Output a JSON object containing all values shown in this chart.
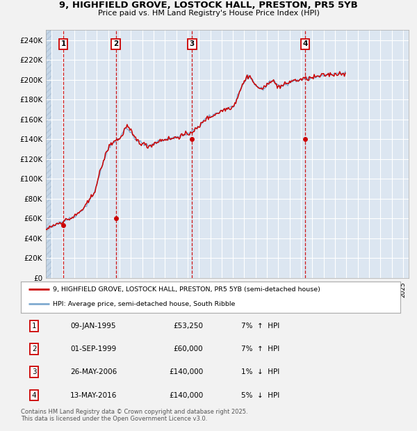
{
  "title": "9, HIGHFIELD GROVE, LOSTOCK HALL, PRESTON, PR5 5YB",
  "subtitle": "Price paid vs. HM Land Registry's House Price Index (HPI)",
  "ylim": [
    0,
    250000
  ],
  "yticks": [
    0,
    20000,
    40000,
    60000,
    80000,
    100000,
    120000,
    140000,
    160000,
    180000,
    200000,
    220000,
    240000
  ],
  "ytick_labels": [
    "£0",
    "£20K",
    "£40K",
    "£60K",
    "£80K",
    "£100K",
    "£120K",
    "£140K",
    "£160K",
    "£180K",
    "£200K",
    "£220K",
    "£240K"
  ],
  "xlim_start": 1993.5,
  "xlim_end": 2025.5,
  "bg_color": "#dce6f1",
  "grid_color": "#ffffff",
  "fig_bg": "#f2f2f2",
  "transactions": [
    {
      "num": 1,
      "date": "09-JAN-1995",
      "price": 53250,
      "year": 1995.03,
      "pct": "7%",
      "dir": "↑",
      "rel": "HPI"
    },
    {
      "num": 2,
      "date": "01-SEP-1999",
      "price": 60000,
      "year": 1999.67,
      "pct": "7%",
      "dir": "↑",
      "rel": "HPI"
    },
    {
      "num": 3,
      "date": "26-MAY-2006",
      "price": 140000,
      "year": 2006.4,
      "pct": "1%",
      "dir": "↓",
      "rel": "HPI"
    },
    {
      "num": 4,
      "date": "13-MAY-2016",
      "price": 140000,
      "year": 2016.37,
      "pct": "5%",
      "dir": "↓",
      "rel": "HPI"
    }
  ],
  "legend_line1": "9, HIGHFIELD GROVE, LOSTOCK HALL, PRESTON, PR5 5YB (semi-detached house)",
  "legend_line2": "HPI: Average price, semi-detached house, South Ribble",
  "footnote": "Contains HM Land Registry data © Crown copyright and database right 2025.\nThis data is licensed under the Open Government Licence v3.0.",
  "red_color": "#cc0000",
  "blue_color": "#80aad0",
  "hpi_base": [
    46500,
    47200,
    47800,
    48100,
    48500,
    49000,
    49500,
    50000,
    50500,
    51000,
    51500,
    52000,
    52500,
    53000,
    53200,
    53500,
    54000,
    54500,
    55000,
    55300,
    55600,
    56000,
    56400,
    56800,
    57200,
    57600,
    58000,
    58300,
    58700,
    59100,
    59500,
    59800,
    60200,
    60600,
    61100,
    61600,
    62200,
    62800,
    63500,
    64200,
    65000,
    65800,
    66700,
    67600,
    68500,
    69400,
    70300,
    71200,
    72200,
    73500,
    75000,
    76500,
    78000,
    79500,
    81000,
    82500,
    84000,
    86000,
    88500,
    91500,
    95000,
    98500,
    102000,
    105000,
    108000,
    111000,
    114000,
    117000,
    120000,
    122500,
    125000,
    127500,
    130000,
    132000,
    133500,
    134500,
    135500,
    136500,
    137500,
    138000,
    138500,
    139000,
    139500,
    140000,
    141000,
    142500,
    144000,
    146000,
    148000,
    149500,
    150500,
    151000,
    150500,
    150000,
    149000,
    148000,
    147000,
    145500,
    144000,
    142500,
    141000,
    140000,
    139000,
    138500,
    138000,
    137500,
    137000,
    136500,
    136000,
    135500,
    135000,
    134500,
    134000,
    133500,
    133200,
    133000,
    133200,
    133500,
    134000,
    134500,
    135000,
    135500,
    136000,
    136500,
    137000,
    137500,
    138000,
    138500,
    138800,
    139000,
    139200,
    139500,
    139800,
    140000,
    140200,
    140300,
    140400,
    140500,
    140600,
    140800,
    141000,
    141200,
    141500,
    141800,
    142000,
    142300,
    142600,
    142900,
    143200,
    143500,
    143700,
    143900,
    144100,
    144300,
    144500,
    144700,
    145000,
    145500,
    146200,
    147000,
    147800,
    148500,
    149000,
    149500,
    150000,
    150500,
    151000,
    151500,
    152500,
    153500,
    155000,
    156500,
    158000,
    159000,
    159800,
    160500,
    161000,
    161500,
    162000,
    162500,
    163000,
    163500,
    164000,
    164500,
    165000,
    165500,
    166000,
    166500,
    167000,
    167500,
    168000,
    168500,
    169000,
    169500,
    170000,
    170500,
    170800,
    171000,
    171200,
    171500,
    171800,
    172000,
    172300,
    172600,
    173000,
    174000,
    175500,
    177500,
    180000,
    182500,
    185000,
    187500,
    190000,
    192000,
    194000,
    196000,
    197500,
    199000,
    200500,
    202000,
    203000,
    203500,
    203000,
    202000,
    200500,
    199000,
    197500,
    196000,
    194500,
    193500,
    193000,
    192500,
    192000,
    191500,
    191000,
    190800,
    191000,
    191500,
    192000,
    193000,
    194500,
    196000,
    197500,
    198500,
    199000,
    199200,
    199000,
    198500,
    197500,
    196500,
    195500,
    194500,
    193500,
    193000,
    192800,
    193000,
    193500,
    194000,
    194500,
    195000,
    195500,
    196000,
    196500,
    197000,
    197500,
    198000,
    198500,
    199000,
    199000,
    199000,
    199000,
    199000,
    199200,
    199400,
    199600,
    199800,
    200000,
    200200,
    200400,
    200600,
    200700,
    200800,
    200900,
    201000,
    201100,
    201200,
    201400,
    201600,
    201800,
    202000,
    202200,
    202400,
    202600,
    202800,
    203000,
    203200,
    203400,
    203600,
    203800,
    204000,
    204200,
    204400,
    204600,
    204800,
    205000,
    205100,
    205200,
    205200,
    205300,
    205300,
    205400,
    205500,
    205600,
    205700,
    205800,
    205900,
    206000,
    206100,
    206200,
    206300,
    206400,
    206500,
    206600,
    206700
  ],
  "price_base": [
    46500,
    47000,
    47500,
    47800,
    48200,
    48700,
    49200,
    49800,
    50200,
    50800,
    51300,
    51800,
    52300,
    52800,
    53250,
    53600,
    54000,
    54500,
    55000,
    55200,
    55500,
    55800,
    56200,
    56600,
    57000,
    57500,
    57900,
    58200,
    58600,
    59000,
    59400,
    59700,
    60000,
    60400,
    60900,
    61500,
    62000,
    62700,
    63400,
    64200,
    65000,
    65900,
    66800,
    67700,
    68600,
    69500,
    70500,
    71500,
    72500,
    74000,
    75500,
    77000,
    78500,
    80000,
    81500,
    83000,
    84500,
    86500,
    89000,
    92000,
    95500,
    99000,
    102500,
    106000,
    109000,
    112000,
    115000,
    118000,
    121000,
    123500,
    126000,
    128500,
    131000,
    133000,
    134200,
    135000,
    136000,
    137000,
    138000,
    138500,
    139000,
    139500,
    140000,
    140500,
    140000,
    141000,
    142500,
    144800,
    147000,
    149000,
    151000,
    152500,
    153000,
    152000,
    150500,
    149000,
    148000,
    146200,
    144500,
    143000,
    141500,
    140500,
    139500,
    138800,
    138000,
    137200,
    136500,
    136000,
    135800,
    135200,
    135000,
    134200,
    133600,
    133200,
    133000,
    133200,
    133500,
    134000,
    134500,
    135000,
    135500,
    136000,
    136500,
    137000,
    137500,
    138000,
    138500,
    138800,
    139000,
    139200,
    139500,
    139800,
    140000,
    140200,
    140300,
    140400,
    140400,
    140500,
    140500,
    140600,
    140800,
    141000,
    141300,
    141600,
    141900,
    142200,
    142500,
    142800,
    143100,
    143400,
    143600,
    143800,
    144000,
    144200,
    144500,
    144700,
    145000,
    145500,
    146200,
    147000,
    147500,
    148000,
    148500,
    149000,
    149500,
    150000,
    150500,
    151000,
    152000,
    153200,
    154800,
    156200,
    158000,
    158800,
    159500,
    160000,
    160500,
    161000,
    161500,
    162000,
    162500,
    163000,
    163500,
    164000,
    164500,
    165000,
    165500,
    166000,
    166500,
    167000,
    167500,
    168000,
    168500,
    169000,
    169500,
    170000,
    170300,
    170600,
    171000,
    171300,
    171600,
    172000,
    172300,
    172600,
    173000,
    174200,
    176000,
    178000,
    180500,
    183000,
    185500,
    188000,
    190500,
    192500,
    194500,
    196500,
    198000,
    200000,
    201500,
    203000,
    203800,
    204000,
    203500,
    202000,
    200500,
    198800,
    197000,
    195500,
    194000,
    193200,
    192500,
    192200,
    192000,
    191500,
    191000,
    190800,
    191000,
    191500,
    192200,
    193200,
    195000,
    196500,
    198000,
    199000,
    199200,
    199000,
    198500,
    198000,
    197000,
    196000,
    195000,
    194000,
    193500,
    193200,
    193000,
    193200,
    193700,
    194200,
    194700,
    195200,
    195700,
    196200,
    196700,
    197200,
    197700,
    198200,
    198700,
    199200,
    199200,
    199200,
    199200,
    199200,
    199400,
    199600,
    199800,
    200000,
    200200,
    200400,
    200600,
    200800,
    200900,
    201000,
    201100,
    201200,
    201300,
    201400,
    201600,
    201800,
    202000,
    202200,
    202400,
    202600,
    202800,
    203000,
    203200,
    203400,
    203600,
    203800,
    204000,
    204200,
    204400,
    204600,
    204800,
    205000,
    205100,
    205200,
    205200,
    205300,
    205300,
    205400,
    205500,
    205600,
    205700,
    205800,
    205900,
    206000,
    206100,
    206200,
    206300,
    206400,
    206500,
    206600,
    206700,
    206800
  ]
}
